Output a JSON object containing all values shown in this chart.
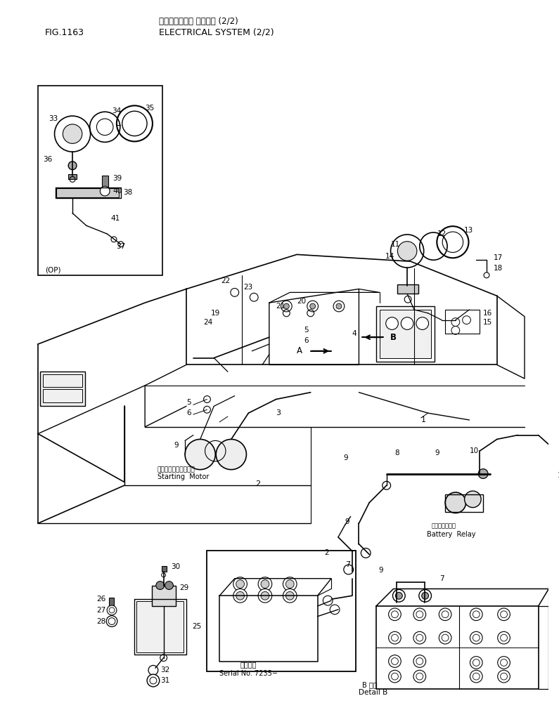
{
  "title_japanese": "エレクトリカル システム (2/2)",
  "title_english": "ELECTRICAL SYSTEM (2/2)",
  "fig_label": "FIG.1163",
  "bg": "#ffffff",
  "lc": "#000000",
  "fig_width": 7.95,
  "fig_height": 10.01,
  "dpi": 100
}
